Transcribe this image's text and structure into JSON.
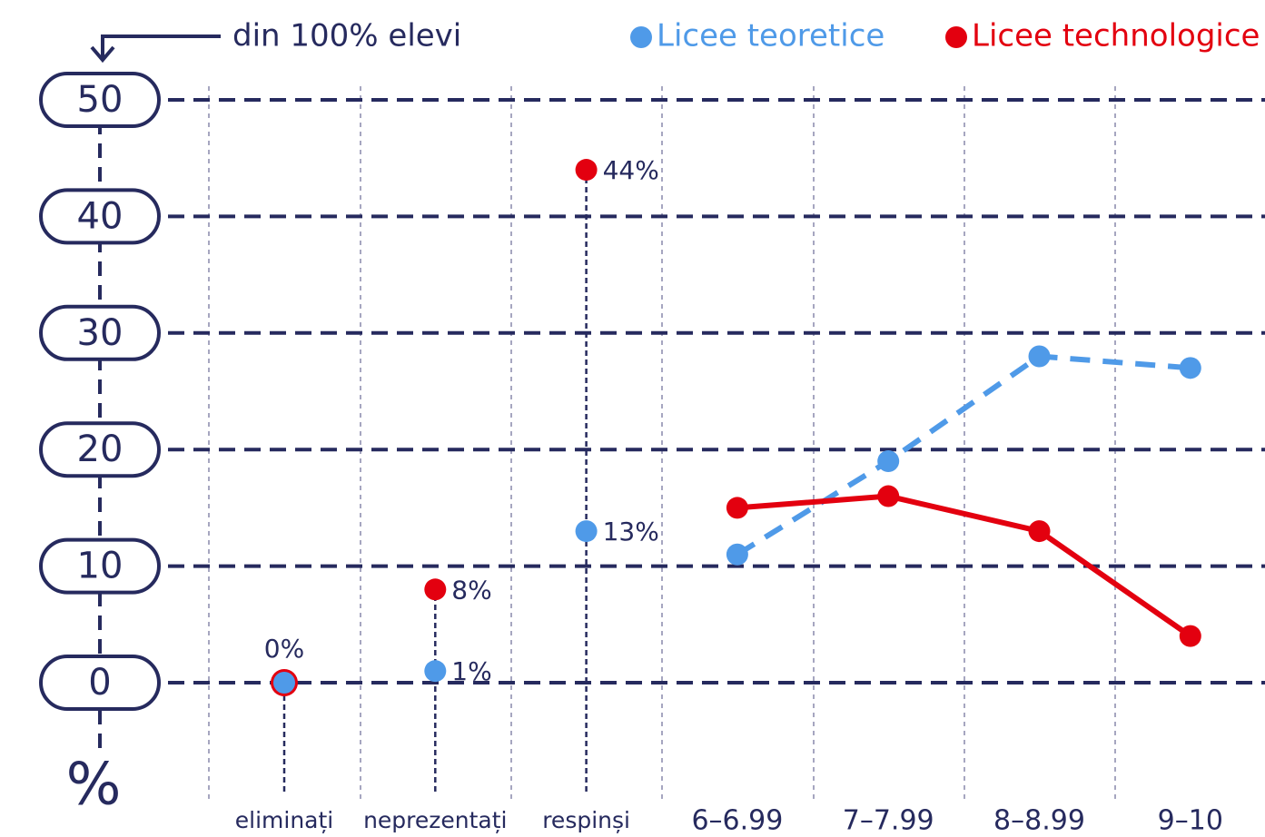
{
  "chart_data": {
    "type": "line",
    "annotation": "din 100% elevi",
    "y_label": "%",
    "categories": [
      "eliminați",
      "neprezentați",
      "respinși",
      "6–6.99",
      "7–7.99",
      "8–8.99",
      "9–10"
    ],
    "series": [
      {
        "name": "Licee teoretice",
        "color": "#4f9ae8",
        "line_style": "dashed",
        "values": [
          0,
          1,
          13,
          11,
          19,
          28,
          27
        ],
        "value_labels": [
          "0%",
          "1%",
          "13%",
          null,
          null,
          null,
          null
        ]
      },
      {
        "name": "Licee technologice",
        "color": "#e3000f",
        "line_style": "solid",
        "values": [
          0,
          8,
          44,
          15,
          16,
          13,
          4
        ],
        "value_labels": [
          null,
          "8%",
          "44%",
          null,
          null,
          null,
          null
        ]
      }
    ],
    "ylim": [
      0,
      50
    ],
    "yticks": [
      0,
      10,
      20,
      30,
      40,
      50
    ],
    "grid": true,
    "legend": "top"
  }
}
